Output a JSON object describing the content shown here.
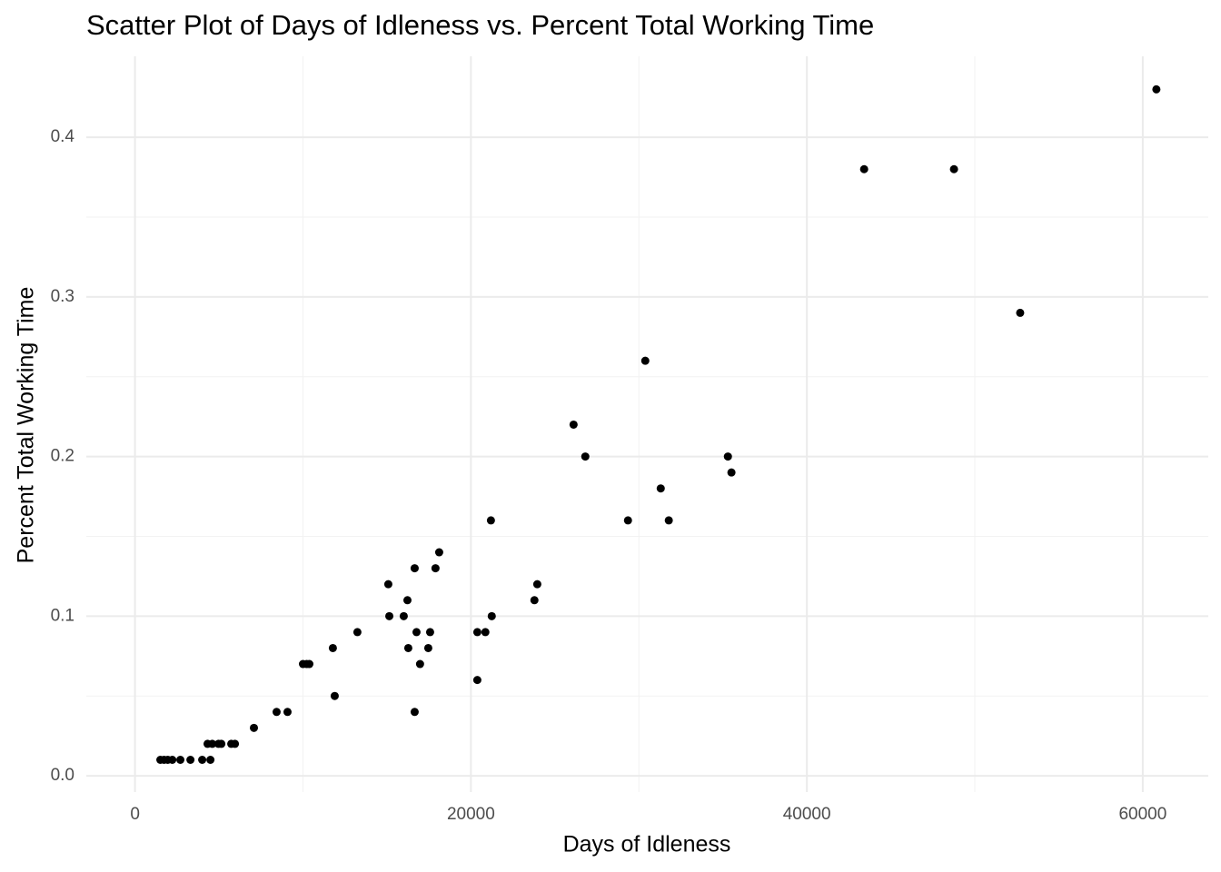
{
  "chart_data": {
    "type": "scatter",
    "title": "Scatter Plot of Days of Idleness vs. Percent Total Working Time",
    "x_label": "Days of Idleness",
    "y_label": "Percent Total Working Time",
    "color": "#000000",
    "grid": true,
    "xlim": [
      -2900,
      63900
    ],
    "ylim": [
      -0.0102,
      0.4507
    ],
    "xticks": [
      0,
      20000,
      40000,
      60000
    ],
    "yticks": [
      {
        "value": 0,
        "label": "0.0"
      },
      0.1,
      0.2,
      0.3,
      0.4
    ],
    "xminor": [
      10000,
      30000,
      50000
    ],
    "yminor": [
      0.05,
      0.15,
      0.25,
      0.35
    ],
    "x": [
      1510,
      1730,
      1950,
      2220,
      2700,
      3300,
      4000,
      4490,
      4320,
      4600,
      4970,
      5140,
      5730,
      5950,
      7080,
      8430,
      9080,
      10000,
      10220,
      10380,
      11780,
      11890,
      13240,
      15080,
      15140,
      16000,
      16220,
      16270,
      16650,
      16650,
      16760,
      16970,
      17460,
      17570,
      17890,
      18110,
      20380,
      20380,
      20860,
      21190,
      21240,
      23780,
      23950,
      26110,
      26810,
      29350,
      30380,
      31300,
      31780,
      35300,
      35510,
      43410,
      48760,
      52700,
      60810
    ],
    "values": [
      0.01,
      0.01,
      0.01,
      0.01,
      0.01,
      0.01,
      0.01,
      0.01,
      0.02,
      0.02,
      0.02,
      0.02,
      0.02,
      0.02,
      0.03,
      0.04,
      0.04,
      0.07,
      0.07,
      0.07,
      0.08,
      0.05,
      0.09,
      0.12,
      0.1,
      0.1,
      0.11,
      0.08,
      0.13,
      0.04,
      0.09,
      0.07,
      0.08,
      0.09,
      0.13,
      0.14,
      0.06,
      0.09,
      0.09,
      0.16,
      0.1,
      0.11,
      0.12,
      0.22,
      0.2,
      0.16,
      0.26,
      0.18,
      0.16,
      0.2,
      0.19,
      0.38,
      0.38,
      0.29,
      0.43
    ]
  }
}
